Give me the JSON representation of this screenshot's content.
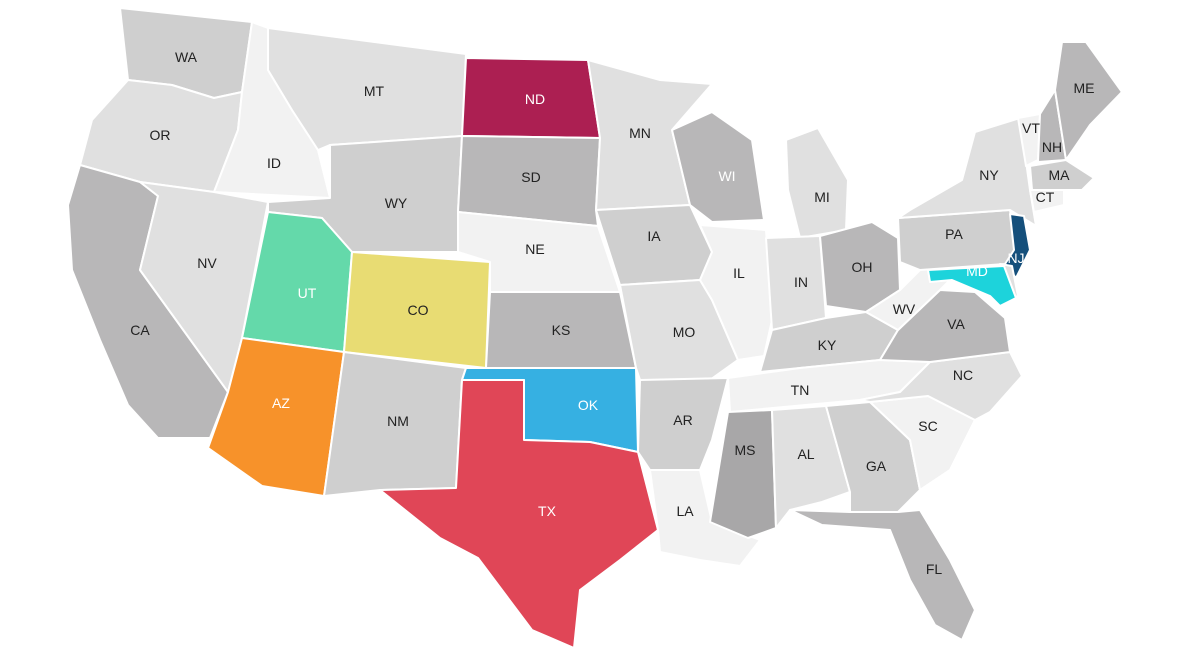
{
  "map": {
    "palette": {
      "tone1": "#f2f2f2",
      "tone2": "#e0e0e0",
      "tone3": "#cfcfcf",
      "tone4": "#b8b7b8",
      "tone5": "#a8a7a8"
    },
    "states": [
      {
        "id": "WA",
        "label": "WA",
        "fill": "#cfcfcf"
      },
      {
        "id": "OR",
        "label": "OR",
        "fill": "#e0e0e0"
      },
      {
        "id": "CA",
        "label": "CA",
        "fill": "#b8b7b8"
      },
      {
        "id": "ID",
        "label": "ID",
        "fill": "#f2f2f2"
      },
      {
        "id": "NV",
        "label": "NV",
        "fill": "#e0e0e0"
      },
      {
        "id": "MT",
        "label": "MT",
        "fill": "#e0e0e0"
      },
      {
        "id": "WY",
        "label": "WY",
        "fill": "#cfcfcf"
      },
      {
        "id": "UT",
        "label": "UT",
        "fill": "#64d9aa",
        "light": true
      },
      {
        "id": "AZ",
        "label": "AZ",
        "fill": "#f7922a",
        "light": true
      },
      {
        "id": "CO",
        "label": "CO",
        "fill": "#e8dc73"
      },
      {
        "id": "NM",
        "label": "NM",
        "fill": "#cfcfcf"
      },
      {
        "id": "ND",
        "label": "ND",
        "fill": "#ac1f52",
        "light": true
      },
      {
        "id": "SD",
        "label": "SD",
        "fill": "#b8b7b8"
      },
      {
        "id": "NE",
        "label": "NE",
        "fill": "#f2f2f2"
      },
      {
        "id": "KS",
        "label": "KS",
        "fill": "#b8b7b8"
      },
      {
        "id": "OK",
        "label": "OK",
        "fill": "#36b0e2",
        "light": true
      },
      {
        "id": "TX",
        "label": "TX",
        "fill": "#e04657",
        "light": true
      },
      {
        "id": "MN",
        "label": "MN",
        "fill": "#e0e0e0"
      },
      {
        "id": "IA",
        "label": "IA",
        "fill": "#cfcfcf"
      },
      {
        "id": "MO",
        "label": "MO",
        "fill": "#e0e0e0"
      },
      {
        "id": "AR",
        "label": "AR",
        "fill": "#cfcfcf"
      },
      {
        "id": "LA",
        "label": "LA",
        "fill": "#f2f2f2"
      },
      {
        "id": "WI",
        "label": "WI",
        "fill": "#b8b7b8",
        "light": true
      },
      {
        "id": "IL",
        "label": "IL",
        "fill": "#f2f2f2"
      },
      {
        "id": "MI",
        "label": "MI",
        "fill": "#e0e0e0"
      },
      {
        "id": "IN",
        "label": "IN",
        "fill": "#e0e0e0"
      },
      {
        "id": "OH",
        "label": "OH",
        "fill": "#b8b7b8"
      },
      {
        "id": "KY",
        "label": "KY",
        "fill": "#cfcfcf"
      },
      {
        "id": "TN",
        "label": "TN",
        "fill": "#f2f2f2"
      },
      {
        "id": "MS",
        "label": "MS",
        "fill": "#a8a7a8"
      },
      {
        "id": "AL",
        "label": "AL",
        "fill": "#e0e0e0"
      },
      {
        "id": "GA",
        "label": "GA",
        "fill": "#cfcfcf"
      },
      {
        "id": "FL",
        "label": "FL",
        "fill": "#b8b7b8"
      },
      {
        "id": "SC",
        "label": "SC",
        "fill": "#f2f2f2"
      },
      {
        "id": "NC",
        "label": "NC",
        "fill": "#e0e0e0"
      },
      {
        "id": "VA",
        "label": "VA",
        "fill": "#b8b7b8"
      },
      {
        "id": "WV",
        "label": "WV",
        "fill": "#f2f2f2"
      },
      {
        "id": "PA",
        "label": "PA",
        "fill": "#cfcfcf"
      },
      {
        "id": "NY",
        "label": "NY",
        "fill": "#e0e0e0"
      },
      {
        "id": "VT",
        "label": "VT",
        "fill": "#f2f2f2"
      },
      {
        "id": "NH",
        "label": "NH",
        "fill": "#b8b7b8"
      },
      {
        "id": "ME",
        "label": "ME",
        "fill": "#b8b7b8"
      },
      {
        "id": "MA",
        "label": "MA",
        "fill": "#cfcfcf"
      },
      {
        "id": "CT",
        "label": "CT",
        "fill": "#f2f2f2"
      },
      {
        "id": "NJ",
        "label": "NJ",
        "fill": "#154f7b",
        "light": true
      },
      {
        "id": "DE",
        "label": "",
        "fill": "#e0e0e0"
      },
      {
        "id": "MD",
        "label": "MD",
        "fill": "#1dd3db",
        "light": true
      }
    ]
  }
}
